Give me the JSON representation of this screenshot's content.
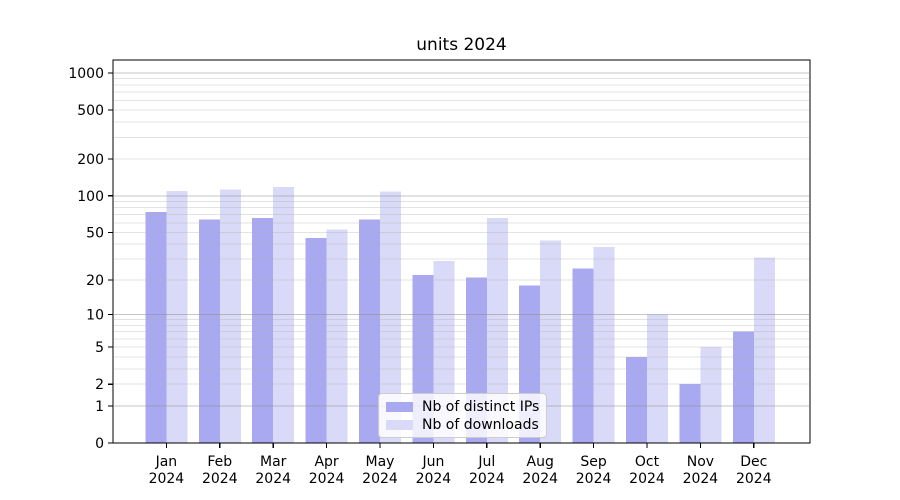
{
  "figure": {
    "background": "#ffffff"
  },
  "chart_data": {
    "type": "bar",
    "title": "units 2024",
    "xlabel": "",
    "ylabel": "",
    "categories": [
      "Jan",
      "Feb",
      "Mar",
      "Apr",
      "May",
      "Jun",
      "Jul",
      "Aug",
      "Sep",
      "Oct",
      "Nov",
      "Dec"
    ],
    "category_year": "2024",
    "series": [
      {
        "name": "Nb of distinct IPs",
        "color": "#a9a9f2",
        "values": [
          74,
          64,
          66,
          45,
          64,
          22,
          21,
          18,
          25,
          4,
          2,
          7
        ]
      },
      {
        "name": "Nb of downloads",
        "color": "#d9d9f8",
        "values": [
          110,
          113,
          118,
          53,
          109,
          29,
          66,
          43,
          38,
          10,
          5,
          31
        ]
      }
    ],
    "yscale": "log1p",
    "ytick_values": [
      0,
      1,
      2,
      5,
      10,
      20,
      50,
      100,
      200,
      500,
      1000
    ],
    "ytick_labels": [
      "0",
      "1",
      "2",
      "5",
      "10",
      "20",
      "50",
      "100",
      "200",
      "500",
      "1000"
    ],
    "ylim": [
      0,
      1228
    ],
    "grid": "on",
    "grid_minor_multiples": [
      2,
      3,
      4,
      5,
      6,
      7,
      8,
      9
    ],
    "legend_position": "lower center",
    "axis_color": "#000000",
    "major_grid_color": "rgba(140,140,140,0.5)",
    "minor_grid_color": "rgba(175,175,175,0.35)"
  }
}
